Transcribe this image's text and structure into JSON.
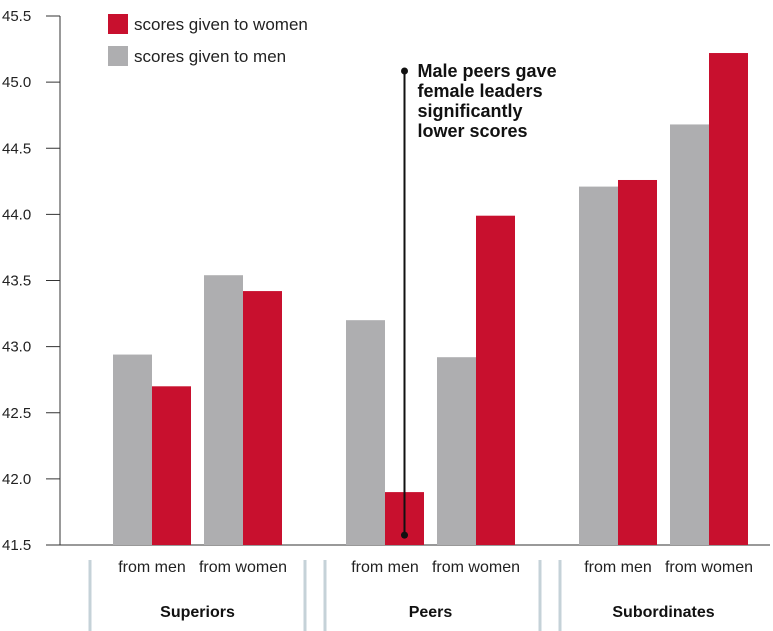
{
  "chart_data": {
    "type": "bar",
    "ylim": [
      41.5,
      45.5
    ],
    "yticks": [
      "41.5",
      "42.0",
      "42.5",
      "43.0",
      "43.5",
      "44.0",
      "44.5",
      "45.0",
      "45.5"
    ],
    "grid": false,
    "legend_position": "top-left",
    "groups": [
      {
        "label": "Superiors",
        "categories": [
          "from men",
          "from women"
        ]
      },
      {
        "label": "Peers",
        "categories": [
          "from men",
          "from women"
        ]
      },
      {
        "label": "Subordinates",
        "categories": [
          "from men",
          "from women"
        ]
      }
    ],
    "series": [
      {
        "name": "scores given to men",
        "color": "#aeaeb0",
        "values": [
          42.94,
          43.54,
          43.2,
          42.92,
          44.21,
          44.68
        ]
      },
      {
        "name": "scores given to women",
        "color": "#c8102e",
        "values": [
          42.7,
          43.42,
          41.9,
          43.99,
          44.26,
          45.22
        ]
      }
    ],
    "legend": [
      {
        "label": "scores given to women",
        "color": "#c8102e"
      },
      {
        "label": "scores given to men",
        "color": "#aeaeb0"
      }
    ],
    "annotation": {
      "lines": [
        "Male peers gave",
        "female leaders",
        "significantly",
        "lower scores"
      ],
      "target": {
        "group": 1,
        "category": 0,
        "series": 1
      }
    }
  }
}
